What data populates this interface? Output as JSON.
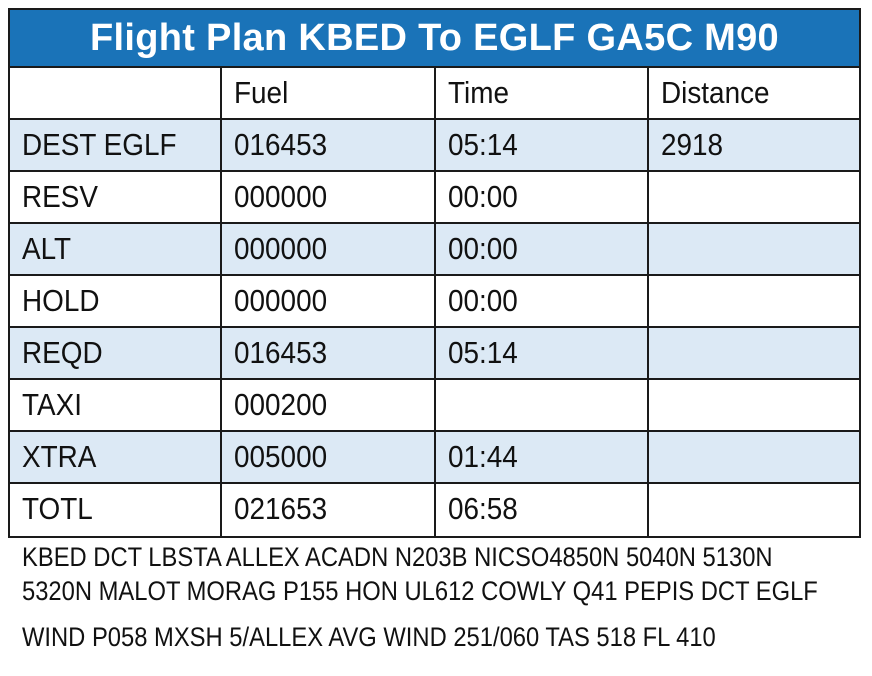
{
  "title": "Flight Plan KBED To EGLF GA5C M90",
  "columns": [
    "",
    "Fuel",
    "Time",
    "Distance"
  ],
  "rows": [
    {
      "label": "DEST EGLF",
      "fuel": "016453",
      "time": "05:14",
      "distance": "2918"
    },
    {
      "label": "RESV",
      "fuel": "000000",
      "time": "00:00",
      "distance": ""
    },
    {
      "label": "ALT",
      "fuel": "000000",
      "time": "00:00",
      "distance": ""
    },
    {
      "label": "HOLD",
      "fuel": "000000",
      "time": "00:00",
      "distance": ""
    },
    {
      "label": "REQD",
      "fuel": "016453",
      "time": "05:14",
      "distance": ""
    },
    {
      "label": "TAXI",
      "fuel": "000200",
      "time": "",
      "distance": ""
    },
    {
      "label": "XTRA",
      "fuel": "005000",
      "time": "01:44",
      "distance": ""
    },
    {
      "label": "TOTL",
      "fuel": "021653",
      "time": "06:58",
      "distance": ""
    }
  ],
  "route": {
    "line1": "KBED DCT LBSTA ALLEX ACADN N203B NICSO4850N 5040N 5130N",
    "line2": "5320N MALOT MORAG P155 HON UL612 COWLY Q41 PEPIS DCT EGLF"
  },
  "wind": "WIND P058 MXSH 5/ALLEX AVG WIND 251/060 TAS 518 FL 410",
  "colors": {
    "title_bg": "#1a73b8",
    "shaded_row": "#dce9f5",
    "border": "#1a1a1a"
  }
}
